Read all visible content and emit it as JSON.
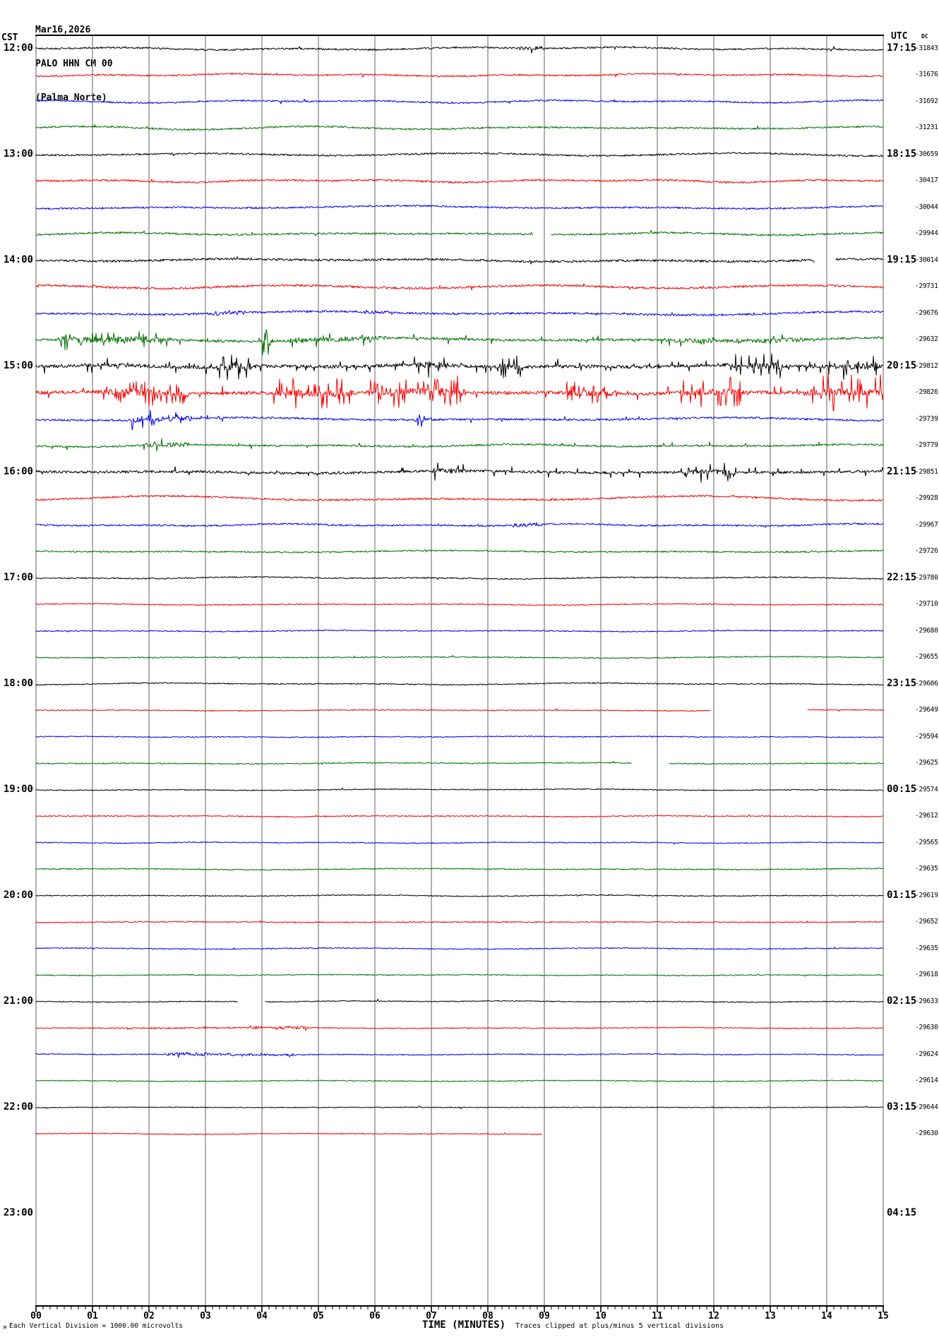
{
  "header": {
    "date": "Mar16,2026",
    "station": "PALO HHN CM 00",
    "location": "(Palma Norte)"
  },
  "axis": {
    "left": "CST",
    "right": "UTC",
    "dc": "DC",
    "x_label": "TIME (MINUTES)",
    "x_ticks": [
      "00",
      "01",
      "02",
      "03",
      "04",
      "05",
      "06",
      "07",
      "08",
      "09",
      "10",
      "11",
      "12",
      "13",
      "14",
      "15"
    ]
  },
  "footer": {
    "left_note": "Each Vertical Division = 1000.00 microvolts",
    "right_note": "Traces clipped at plus/minus 5 vertical divisions",
    "corner_mark": "M"
  },
  "chart_data": {
    "type": "line",
    "variant": "helicorder-seismogram",
    "title": "PALO HHN CM 00 (Palma Norte)",
    "date": "Mar16,2026",
    "x_label": "TIME (MINUTES)",
    "x_range_minutes": [
      0,
      15
    ],
    "rows_per_hour": 4,
    "row_slots": 48,
    "grid": "vertical gridline each minute",
    "colors": {
      "black": "#000000",
      "red": "#f80000",
      "blue": "#0000f0",
      "green": "#007000",
      "grid": "#7d7d7d"
    },
    "rows": [
      {
        "color": "black",
        "cst": "12:00",
        "utc": "17:15",
        "dc": "-31843",
        "activity": "gentle",
        "a": 1.2,
        "w": 2.2,
        "sp": 0.004,
        "sa": 4,
        "bursts": [
          {
            "t0": 8.55,
            "t1": 9.0,
            "a": 1.5,
            "sp": 0.05,
            "sa": 5
          }
        ]
      },
      {
        "color": "red",
        "dc": "-31676",
        "activity": "gentle",
        "a": 1.1,
        "w": 1.8,
        "sp": 0.003,
        "sa": 3
      },
      {
        "color": "blue",
        "dc": "-31692",
        "activity": "gentle",
        "a": 1.1,
        "w": 2.0,
        "sp": 0.003,
        "sa": 3
      },
      {
        "color": "green",
        "dc": "-31231",
        "activity": "gentle",
        "a": 1.2,
        "w": 2.4,
        "sp": 0.004,
        "sa": 4
      },
      {
        "color": "black",
        "cst": "13:00",
        "utc": "18:15",
        "dc": "-30659",
        "activity": "gentle",
        "a": 1.2,
        "w": 2.4,
        "sp": 0.004,
        "sa": 3
      },
      {
        "color": "red",
        "dc": "-30417",
        "activity": "gentle",
        "a": 1.3,
        "w": 2.0,
        "sp": 0.005,
        "sa": 3
      },
      {
        "color": "blue",
        "dc": "-30044",
        "activity": "gentle",
        "a": 1.2,
        "w": 2.2,
        "sp": 0.004,
        "sa": 3
      },
      {
        "color": "green",
        "dc": "-29944",
        "activity": "gentle",
        "a": 1.3,
        "w": 1.8,
        "sp": 0.005,
        "sa": 4,
        "gaps": [
          [
            8.8,
            9.12
          ]
        ]
      },
      {
        "color": "black",
        "cst": "14:00",
        "utc": "19:15",
        "dc": "-30014",
        "activity": "gentle",
        "a": 1.6,
        "w": 2.2,
        "sp": 0.01,
        "sa": 4,
        "gaps": [
          [
            13.78,
            14.15
          ]
        ]
      },
      {
        "color": "red",
        "dc": "-29731",
        "activity": "gentle",
        "a": 1.5,
        "w": 2.4,
        "sp": 0.008,
        "sa": 4
      },
      {
        "color": "blue",
        "dc": "-29676",
        "activity": "gentle",
        "a": 1.4,
        "w": 2.8,
        "sp": 0.008,
        "sa": 4,
        "bursts": [
          {
            "t0": 3.1,
            "t1": 3.7,
            "a": 1.5,
            "sp": 0.05,
            "sa": 6
          },
          {
            "t0": 5.8,
            "t1": 6.3,
            "a": 1.2,
            "sp": 0.04,
            "sa": 5
          }
        ]
      },
      {
        "color": "green",
        "dc": "-29632",
        "activity": "active",
        "a": 1.8,
        "w": 2.6,
        "sp": 0.02,
        "sa": 6,
        "bursts": [
          {
            "t0": 0.4,
            "t1": 2.4,
            "a": 2.5,
            "sp": 0.12,
            "sa": 11
          },
          {
            "t0": 4.0,
            "t1": 4.2,
            "a": 2,
            "sp": 0.3,
            "sa": 22
          },
          {
            "t0": 4.5,
            "t1": 6.2,
            "a": 1.5,
            "sp": 0.06,
            "sa": 8
          },
          {
            "t0": 11.2,
            "t1": 13.6,
            "a": 1.5,
            "sp": 0.05,
            "sa": 8
          }
        ]
      },
      {
        "color": "black",
        "cst": "15:00",
        "utc": "20:15",
        "dc": "-29812",
        "activity": "noisy",
        "a": 2.4,
        "w": 1.8,
        "sp": 0.05,
        "sa": 9,
        "bursts": [
          {
            "t0": 3.2,
            "t1": 3.8,
            "a": 2.5,
            "sp": 0.22,
            "sa": 19
          },
          {
            "t0": 6.7,
            "t1": 7.3,
            "a": 2.5,
            "sp": 0.18,
            "sa": 14
          },
          {
            "t0": 8.2,
            "t1": 8.6,
            "a": 2,
            "sp": 0.2,
            "sa": 15
          },
          {
            "t0": 12.3,
            "t1": 13.2,
            "a": 2.5,
            "sp": 0.2,
            "sa": 19
          },
          {
            "t0": 14.3,
            "t1": 14.9,
            "a": 2,
            "sp": 0.18,
            "sa": 15
          }
        ]
      },
      {
        "color": "red",
        "dc": "-29826",
        "activity": "noisy",
        "a": 2.4,
        "w": 1.8,
        "sp": 0.05,
        "sa": 9,
        "bursts": [
          {
            "t0": 1.2,
            "t1": 2.7,
            "a": 2.5,
            "sp": 0.22,
            "sa": 17
          },
          {
            "t0": 4.2,
            "t1": 5.6,
            "a": 2.5,
            "sp": 0.22,
            "sa": 19
          },
          {
            "t0": 5.9,
            "t1": 7.6,
            "a": 2.5,
            "sp": 0.2,
            "sa": 19
          },
          {
            "t0": 9.4,
            "t1": 10.3,
            "a": 2,
            "sp": 0.14,
            "sa": 13
          },
          {
            "t0": 11.4,
            "t1": 12.6,
            "a": 2,
            "sp": 0.16,
            "sa": 22
          },
          {
            "t0": 13.6,
            "t1": 15,
            "a": 2.5,
            "sp": 0.2,
            "sa": 27
          }
        ]
      },
      {
        "color": "blue",
        "dc": "-29739",
        "activity": "active",
        "a": 1.4,
        "w": 2.2,
        "sp": 0.01,
        "sa": 5,
        "bursts": [
          {
            "t0": 1.7,
            "t1": 2.75,
            "a": 2.2,
            "sp": 0.16,
            "sa": 11
          },
          {
            "t0": 6.7,
            "t1": 7.0,
            "a": 1.8,
            "sp": 0.14,
            "sa": 10
          }
        ]
      },
      {
        "color": "green",
        "dc": "-29779",
        "activity": "active",
        "a": 1.3,
        "w": 1.8,
        "sp": 0.012,
        "sa": 5,
        "bursts": [
          {
            "t0": 1.9,
            "t1": 2.7,
            "a": 1.8,
            "sp": 0.1,
            "sa": 8
          }
        ]
      },
      {
        "color": "black",
        "cst": "16:00",
        "utc": "21:15",
        "dc": "-29851",
        "activity": "active",
        "a": 1.8,
        "w": 1.8,
        "sp": 0.03,
        "sa": 7,
        "bursts": [
          {
            "t0": 7.0,
            "t1": 7.6,
            "a": 1.8,
            "sp": 0.12,
            "sa": 12
          },
          {
            "t0": 11.5,
            "t1": 12.4,
            "a": 1.8,
            "sp": 0.12,
            "sa": 12
          }
        ]
      },
      {
        "color": "red",
        "dc": "-29928",
        "activity": "gentle",
        "a": 1.3,
        "w": 3.6,
        "sp": 0.004,
        "sa": 3
      },
      {
        "color": "blue",
        "dc": "-29967",
        "activity": "gentle",
        "a": 1.2,
        "w": 1.8,
        "sp": 0.005,
        "sa": 3,
        "bursts": [
          {
            "t0": 8.45,
            "t1": 8.95,
            "a": 1.6,
            "sp": 0.06,
            "sa": 6
          }
        ]
      },
      {
        "color": "green",
        "dc": "-29726",
        "activity": "calm",
        "a": 1.0,
        "w": 1.4,
        "sp": 0.003,
        "sa": 3
      },
      {
        "color": "black",
        "cst": "17:00",
        "utc": "22:15",
        "dc": "-29780",
        "activity": "calm",
        "a": 0.9,
        "w": 1.4,
        "sp": 0.004,
        "sa": 3
      },
      {
        "color": "red",
        "dc": "-29710",
        "activity": "calm",
        "a": 0.8,
        "w": 0.9,
        "sp": 0.002,
        "sa": 2
      },
      {
        "color": "blue",
        "dc": "-29680",
        "activity": "calm",
        "a": 0.8,
        "w": 0.9,
        "sp": 0.002,
        "sa": 2
      },
      {
        "color": "green",
        "dc": "-29655",
        "activity": "calm",
        "a": 0.8,
        "w": 1.0,
        "sp": 0.003,
        "sa": 2
      },
      {
        "color": "black",
        "cst": "18:00",
        "utc": "23:15",
        "dc": "-29606",
        "activity": "calm",
        "a": 0.8,
        "w": 1.4,
        "sp": 0.002,
        "sa": 2
      },
      {
        "color": "red",
        "dc": "-29649",
        "activity": "calm",
        "a": 0.7,
        "w": 0.7,
        "sp": 0.002,
        "sa": 2,
        "gaps": [
          [
            11.95,
            13.65
          ]
        ]
      },
      {
        "color": "blue",
        "dc": "-29594",
        "activity": "calm",
        "a": 0.7,
        "w": 0.7,
        "sp": 0.002,
        "sa": 2
      },
      {
        "color": "green",
        "dc": "-29625",
        "activity": "calm",
        "a": 0.8,
        "w": 0.9,
        "sp": 0.003,
        "sa": 2,
        "gaps": [
          [
            10.55,
            11.2
          ]
        ]
      },
      {
        "color": "black",
        "cst": "19:00",
        "utc": "00:15",
        "dc": "-29574",
        "activity": "calm",
        "a": 0.7,
        "w": 1.1,
        "sp": 0.002,
        "sa": 2
      },
      {
        "color": "red",
        "dc": "-29612",
        "activity": "calm",
        "a": 0.8,
        "w": 0.7,
        "sp": 0.003,
        "sa": 2
      },
      {
        "color": "blue",
        "dc": "-29565",
        "activity": "calm",
        "a": 0.7,
        "w": 0.7,
        "sp": 0.002,
        "sa": 2
      },
      {
        "color": "green",
        "dc": "-29635",
        "activity": "calm",
        "a": 0.8,
        "w": 0.9,
        "sp": 0.003,
        "sa": 2
      },
      {
        "color": "black",
        "cst": "20:00",
        "utc": "01:15",
        "dc": "-29619",
        "activity": "calm",
        "a": 0.7,
        "w": 0.9,
        "sp": 0.002,
        "sa": 2
      },
      {
        "color": "red",
        "dc": "-29652",
        "activity": "calm",
        "a": 0.8,
        "w": 0.7,
        "sp": 0.003,
        "sa": 2
      },
      {
        "color": "blue",
        "dc": "-29635",
        "activity": "calm",
        "a": 0.7,
        "w": 0.7,
        "sp": 0.002,
        "sa": 2
      },
      {
        "color": "green",
        "dc": "-29618",
        "activity": "calm",
        "a": 0.7,
        "w": 0.7,
        "sp": 0.002,
        "sa": 2
      },
      {
        "color": "black",
        "cst": "21:00",
        "utc": "02:15",
        "dc": "-29633",
        "activity": "calm",
        "a": 0.7,
        "w": 0.9,
        "sp": 0.002,
        "sa": 2,
        "gaps": [
          [
            3.57,
            4.05
          ]
        ]
      },
      {
        "color": "red",
        "dc": "-29630",
        "activity": "calm",
        "a": 0.7,
        "w": 0.7,
        "sp": 0.002,
        "sa": 2,
        "bursts": [
          {
            "t0": 1.0,
            "t1": 3.6,
            "a": 0.3,
            "sp": 0.02,
            "sa": 3
          },
          {
            "t0": 3.8,
            "t1": 4.0,
            "a": 1.2,
            "sp": 0.1,
            "sa": 5
          },
          {
            "t0": 4.2,
            "t1": 4.85,
            "a": 1.3,
            "sp": 0.12,
            "sa": 6
          }
        ]
      },
      {
        "color": "blue",
        "dc": "-29624",
        "activity": "calm",
        "a": 0.7,
        "w": 0.7,
        "sp": 0.002,
        "sa": 2,
        "bursts": [
          {
            "t0": 2.3,
            "t1": 3.05,
            "a": 1.8,
            "sp": 0.1,
            "sa": 6
          },
          {
            "t0": 3.05,
            "t1": 4.6,
            "a": 0.8,
            "sp": 0.03,
            "sa": 3
          }
        ]
      },
      {
        "color": "green",
        "dc": "-29614",
        "activity": "calm",
        "a": 0.7,
        "w": 0.7,
        "sp": 0.002,
        "sa": 2
      },
      {
        "color": "black",
        "cst": "22:00",
        "utc": "03:15",
        "dc": "-29644",
        "activity": "calm",
        "a": 0.6,
        "w": 0.7,
        "sp": 0.002,
        "sa": 2
      },
      {
        "color": "red",
        "dc": "-29630",
        "activity": "calm",
        "a": 0.7,
        "w": 0.7,
        "sp": 0.002,
        "sa": 2,
        "end": 8.95
      },
      {
        "color": "blue",
        "blank": true
      },
      {
        "color": "green",
        "blank": true
      },
      {
        "color": "black",
        "cst": "23:00",
        "utc": "04:15",
        "blank": true
      }
    ]
  }
}
